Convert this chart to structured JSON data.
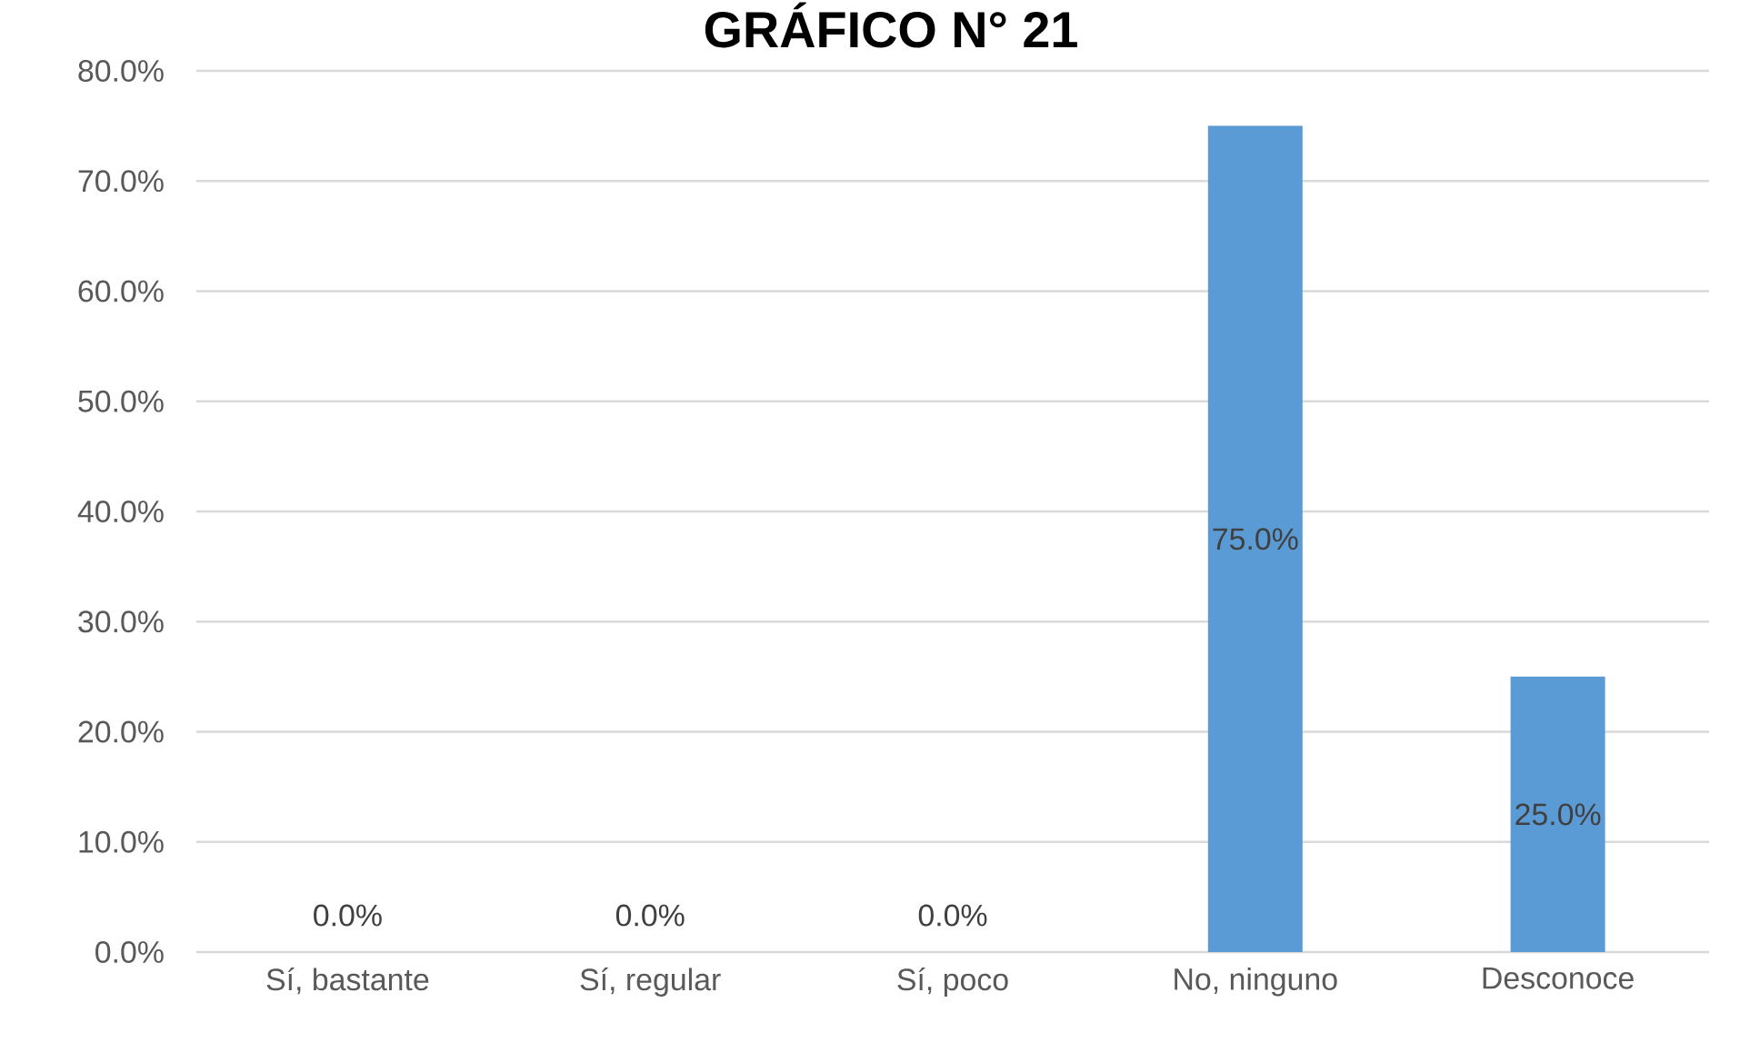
{
  "chart_data": {
    "type": "bar",
    "title": "GRÁFICO N° 21",
    "categories": [
      "Sí, bastante",
      "Sí, regular",
      "Sí, poco",
      "No, ninguno",
      "Desconoce"
    ],
    "values": [
      0,
      0,
      0,
      75,
      25
    ],
    "value_labels": [
      "0.0%",
      "0.0%",
      "0.0%",
      "75.0%",
      "25.0%"
    ],
    "color": "#5b9bd5",
    "ylim": [
      0,
      80
    ],
    "yticks": [
      {
        "value": 0,
        "label": "0.0%"
      },
      {
        "value": 10,
        "label": "10.0%"
      },
      {
        "value": 20,
        "label": "20.0%"
      },
      {
        "value": 30,
        "label": "30.0%"
      },
      {
        "value": 40,
        "label": "40.0%"
      },
      {
        "value": 50,
        "label": "50.0%"
      },
      {
        "value": 60,
        "label": "60.0%"
      },
      {
        "value": 70,
        "label": "70.0%"
      },
      {
        "value": 80,
        "label": "80.0%"
      }
    ],
    "grid": "y"
  }
}
